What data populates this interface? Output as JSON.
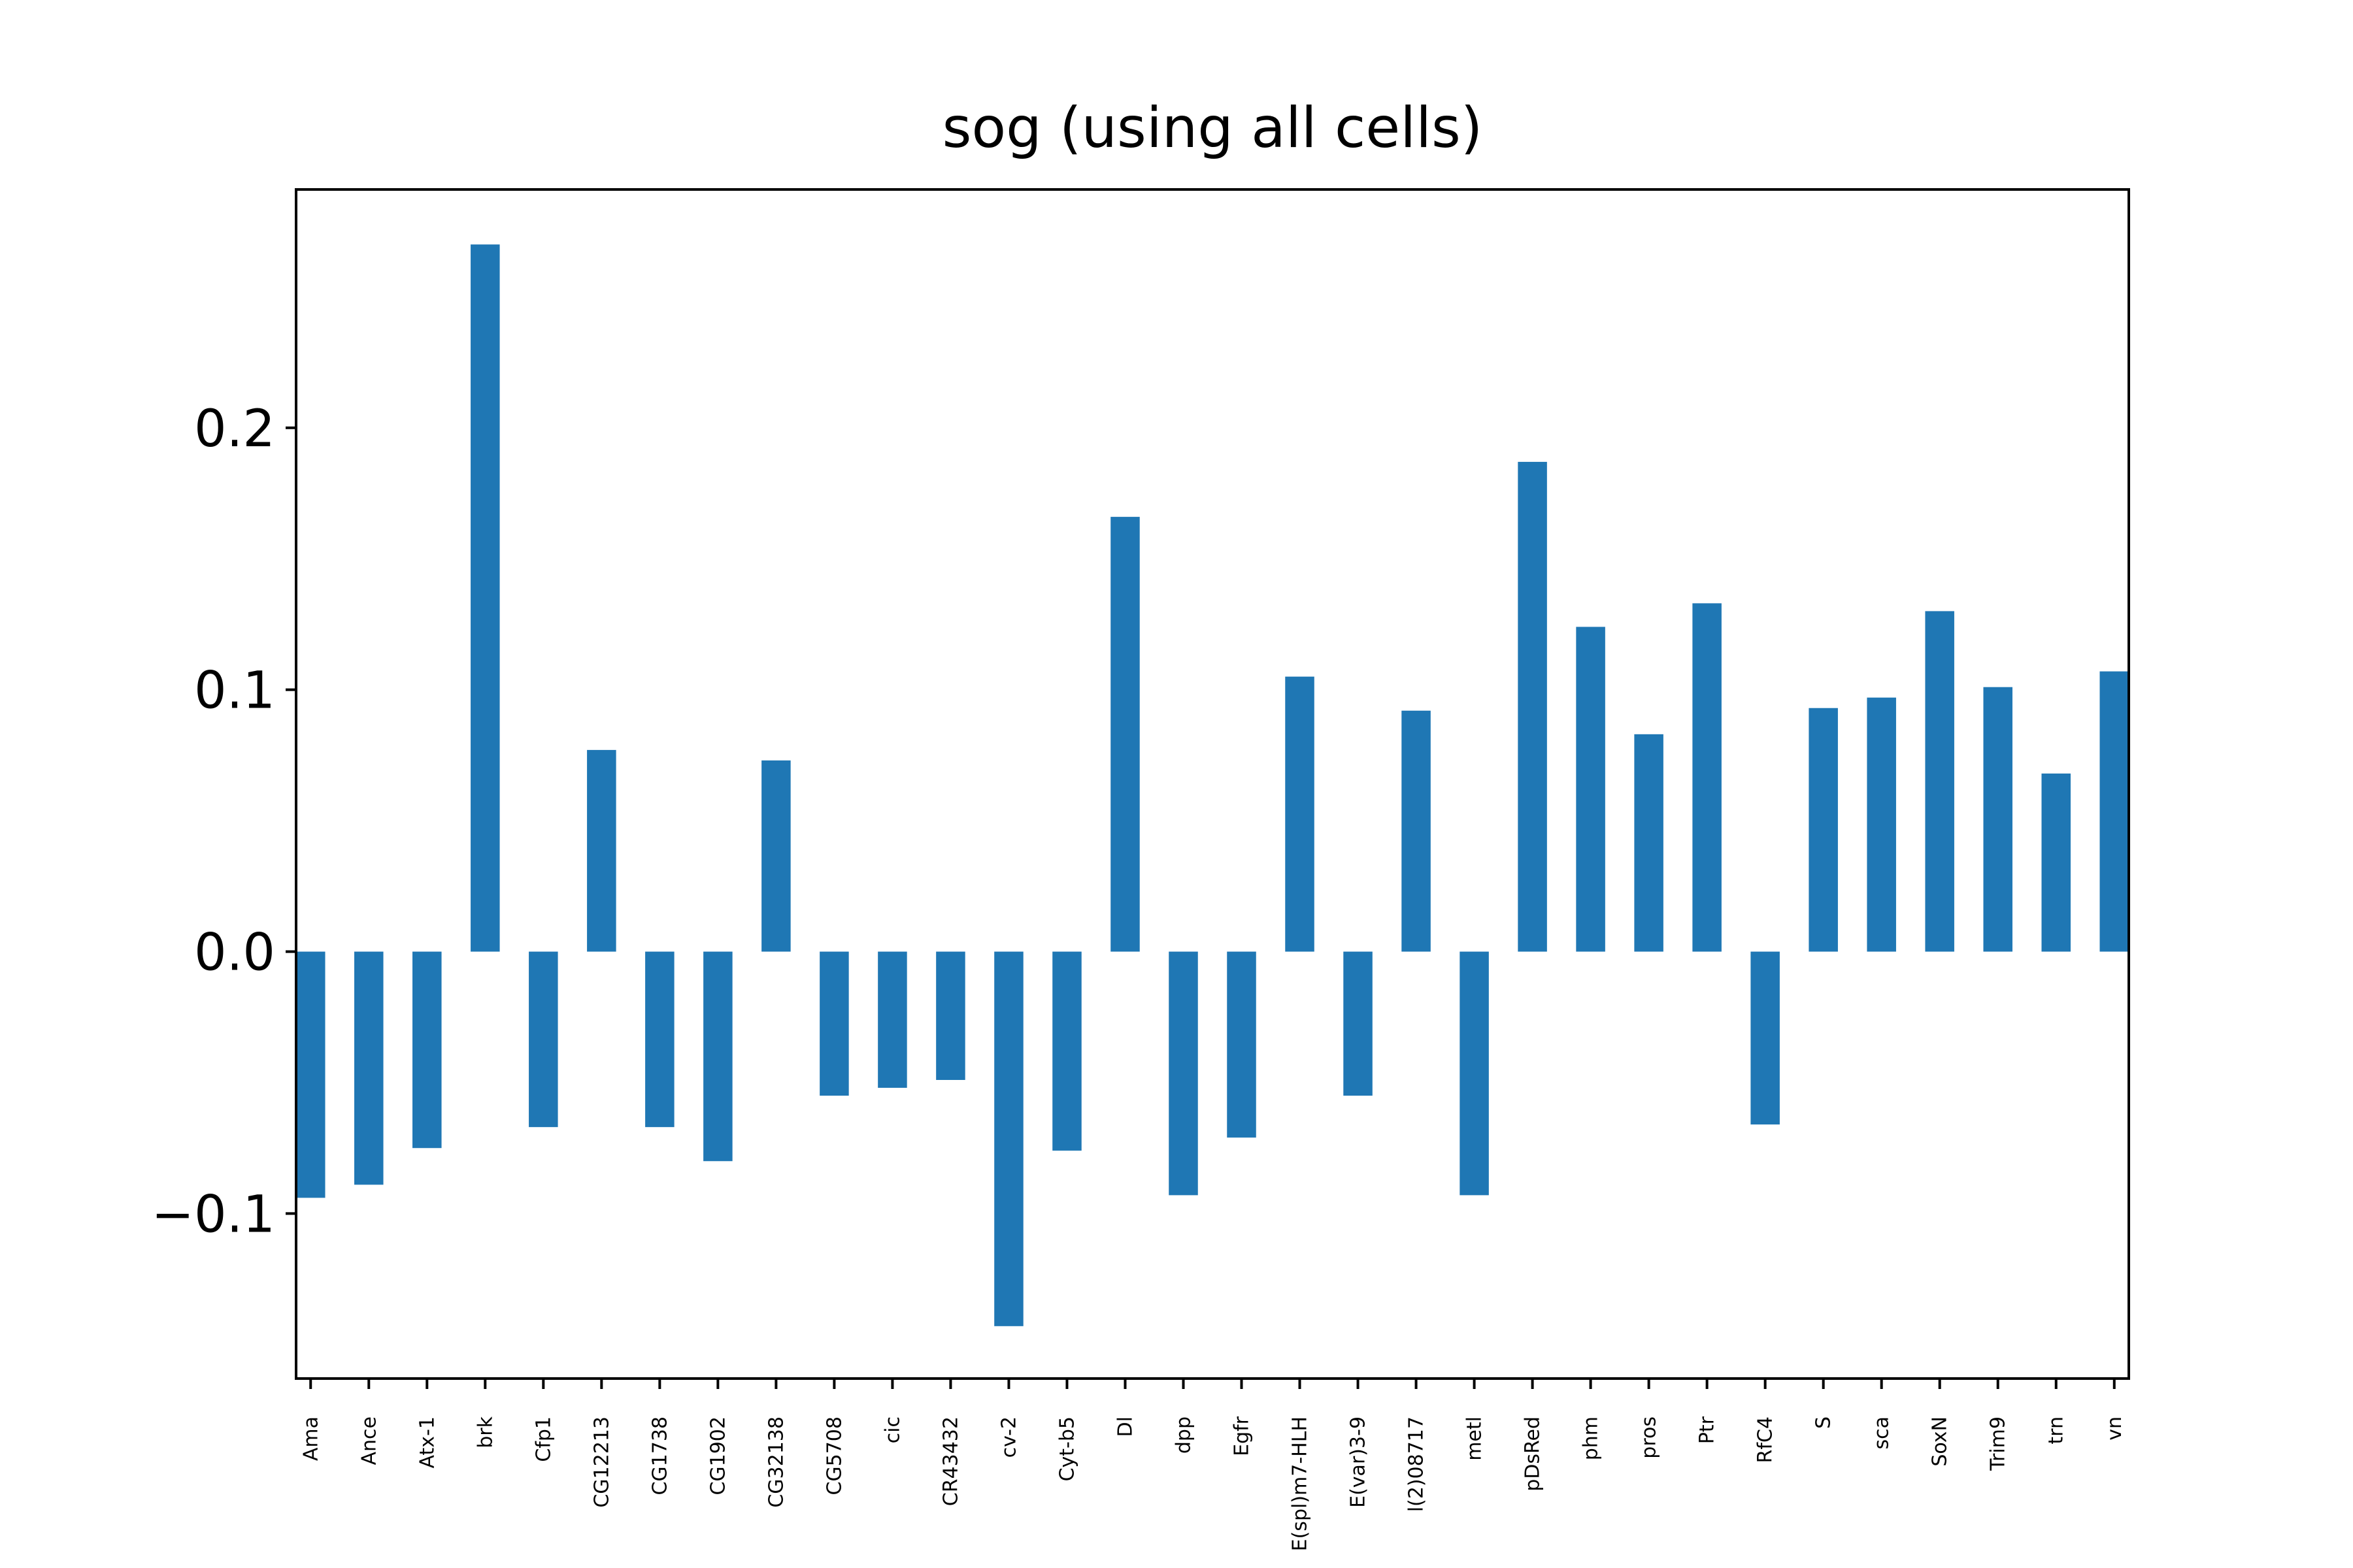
{
  "chart_data": {
    "type": "bar",
    "title": "sog (using all cells)",
    "xlabel": "",
    "ylabel": "",
    "ylim": [
      -0.163,
      0.291
    ],
    "yticks": [
      {
        "value": -0.1,
        "label": "−0.1"
      },
      {
        "value": 0.0,
        "label": "0.0"
      },
      {
        "value": 0.1,
        "label": "0.1"
      },
      {
        "value": 0.2,
        "label": "0.2"
      }
    ],
    "grid": false,
    "legend": "none",
    "bar_color": "#1f77b4",
    "categories": [
      "Ama",
      "Ance",
      "Atx-1",
      "brk",
      "Cfp1",
      "CG12213",
      "CG1738",
      "CG1902",
      "CG32138",
      "CG5708",
      "cic",
      "CR43432",
      "cv-2",
      "Cyt-b5",
      "Dl",
      "dpp",
      "Egfr",
      "E(spl)m7-HLH",
      "E(var)3-9",
      "l(2)08717",
      "metl",
      "pDsRed",
      "phm",
      "pros",
      "Ptr",
      "RfC4",
      "S",
      "sca",
      "SoxN",
      "Trim9",
      "trn",
      "vn"
    ],
    "values": [
      -0.094,
      -0.089,
      -0.075,
      0.27,
      -0.067,
      0.077,
      -0.067,
      -0.08,
      0.073,
      -0.055,
      -0.052,
      -0.049,
      -0.143,
      -0.076,
      0.166,
      -0.093,
      -0.071,
      0.105,
      -0.055,
      0.092,
      -0.093,
      0.187,
      0.124,
      0.083,
      0.133,
      -0.066,
      0.093,
      0.097,
      0.13,
      0.101,
      0.068,
      0.107
    ]
  }
}
